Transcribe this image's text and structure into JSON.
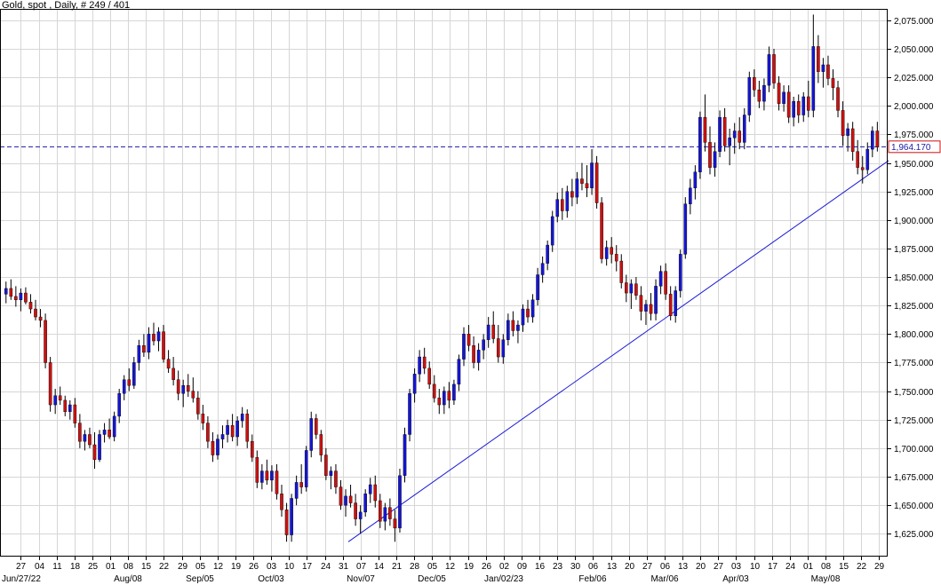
{
  "chart_data": {
    "type": "candlestick",
    "title": "Gold, spot , Daily, # 249 / 401",
    "ylim": [
      1605,
      2085
    ],
    "y_ticks": [
      1625,
      1650,
      1675,
      1700,
      1725,
      1750,
      1775,
      1800,
      1825,
      1850,
      1875,
      1900,
      1925,
      1950,
      1975,
      2000,
      2025,
      2050,
      2075
    ],
    "y_tick_labels": [
      "1,625.000",
      "1,650.000",
      "1,675.000",
      "1,700.000",
      "1,725.000",
      "1,750.000",
      "1,775.000",
      "1,800.000",
      "1,825.000",
      "1,850.000",
      "1,875.000",
      "1,900.000",
      "1,925.000",
      "1,950.000",
      "1,975.000",
      "2,000.000",
      "2,025.000",
      "2,050.000",
      "2,075.000"
    ],
    "x_day_labels": [
      "27",
      "04",
      "11",
      "18",
      "25",
      "01",
      "08",
      "15",
      "22",
      "29",
      "05",
      "12",
      "19",
      "26",
      "03",
      "10",
      "17",
      "24",
      "31",
      "07",
      "14",
      "21",
      "28",
      "05",
      "12",
      "19",
      "26",
      "02",
      "09",
      "16",
      "23",
      "30",
      "06",
      "13",
      "20",
      "27",
      "06",
      "13",
      "20",
      "27",
      "03",
      "10",
      "17",
      "24",
      "01",
      "08",
      "15",
      "22",
      "29"
    ],
    "x_month_labels": [
      {
        "label": "Jun/27/22",
        "day_index": 0
      },
      {
        "label": "Aug/08",
        "day_index": 6
      },
      {
        "label": "Sep/05",
        "day_index": 10
      },
      {
        "label": "Oct/03",
        "day_index": 14
      },
      {
        "label": "Nov/07",
        "day_index": 19
      },
      {
        "label": "Dec/05",
        "day_index": 23
      },
      {
        "label": "Jan/02/23",
        "day_index": 27
      },
      {
        "label": "Feb/06",
        "day_index": 32
      },
      {
        "label": "Mar/06",
        "day_index": 36
      },
      {
        "label": "Apr/03",
        "day_index": 40
      },
      {
        "label": "May/08",
        "day_index": 45
      }
    ],
    "current_price": 1964.17,
    "current_price_label": "1,964.170",
    "trendline": {
      "start": [
        1,
        1618
      ],
      "end": [
        232,
        1952
      ]
    },
    "grid": true,
    "candles": [
      {
        "o": 1835,
        "h": 1846,
        "l": 1827,
        "c": 1840
      },
      {
        "o": 1840,
        "h": 1848,
        "l": 1830,
        "c": 1833
      },
      {
        "o": 1833,
        "h": 1842,
        "l": 1824,
        "c": 1830
      },
      {
        "o": 1830,
        "h": 1840,
        "l": 1820,
        "c": 1836
      },
      {
        "o": 1836,
        "h": 1841,
        "l": 1826,
        "c": 1828
      },
      {
        "o": 1828,
        "h": 1835,
        "l": 1818,
        "c": 1822
      },
      {
        "o": 1822,
        "h": 1830,
        "l": 1812,
        "c": 1815
      },
      {
        "o": 1815,
        "h": 1822,
        "l": 1806,
        "c": 1812
      },
      {
        "o": 1812,
        "h": 1818,
        "l": 1770,
        "c": 1775
      },
      {
        "o": 1775,
        "h": 1780,
        "l": 1732,
        "c": 1738
      },
      {
        "o": 1738,
        "h": 1752,
        "l": 1730,
        "c": 1746
      },
      {
        "o": 1746,
        "h": 1754,
        "l": 1738,
        "c": 1742
      },
      {
        "o": 1742,
        "h": 1746,
        "l": 1728,
        "c": 1732
      },
      {
        "o": 1732,
        "h": 1742,
        "l": 1725,
        "c": 1738
      },
      {
        "o": 1738,
        "h": 1744,
        "l": 1718,
        "c": 1722
      },
      {
        "o": 1722,
        "h": 1730,
        "l": 1700,
        "c": 1706
      },
      {
        "o": 1706,
        "h": 1716,
        "l": 1698,
        "c": 1712
      },
      {
        "o": 1712,
        "h": 1718,
        "l": 1700,
        "c": 1703
      },
      {
        "o": 1703,
        "h": 1714,
        "l": 1682,
        "c": 1690
      },
      {
        "o": 1690,
        "h": 1716,
        "l": 1688,
        "c": 1712
      },
      {
        "o": 1712,
        "h": 1722,
        "l": 1705,
        "c": 1716
      },
      {
        "o": 1716,
        "h": 1726,
        "l": 1708,
        "c": 1710
      },
      {
        "o": 1710,
        "h": 1732,
        "l": 1706,
        "c": 1728
      },
      {
        "o": 1728,
        "h": 1752,
        "l": 1722,
        "c": 1748
      },
      {
        "o": 1748,
        "h": 1764,
        "l": 1742,
        "c": 1760
      },
      {
        "o": 1760,
        "h": 1770,
        "l": 1750,
        "c": 1755
      },
      {
        "o": 1755,
        "h": 1780,
        "l": 1752,
        "c": 1775
      },
      {
        "o": 1775,
        "h": 1795,
        "l": 1768,
        "c": 1790
      },
      {
        "o": 1790,
        "h": 1800,
        "l": 1780,
        "c": 1784
      },
      {
        "o": 1784,
        "h": 1806,
        "l": 1778,
        "c": 1800
      },
      {
        "o": 1800,
        "h": 1810,
        "l": 1790,
        "c": 1794
      },
      {
        "o": 1794,
        "h": 1806,
        "l": 1785,
        "c": 1802
      },
      {
        "o": 1802,
        "h": 1808,
        "l": 1775,
        "c": 1778
      },
      {
        "o": 1778,
        "h": 1786,
        "l": 1766,
        "c": 1770
      },
      {
        "o": 1770,
        "h": 1780,
        "l": 1755,
        "c": 1760
      },
      {
        "o": 1760,
        "h": 1768,
        "l": 1742,
        "c": 1748
      },
      {
        "o": 1748,
        "h": 1760,
        "l": 1736,
        "c": 1755
      },
      {
        "o": 1755,
        "h": 1765,
        "l": 1745,
        "c": 1750
      },
      {
        "o": 1750,
        "h": 1762,
        "l": 1740,
        "c": 1744
      },
      {
        "o": 1744,
        "h": 1750,
        "l": 1725,
        "c": 1730
      },
      {
        "o": 1730,
        "h": 1738,
        "l": 1716,
        "c": 1722
      },
      {
        "o": 1722,
        "h": 1728,
        "l": 1700,
        "c": 1706
      },
      {
        "o": 1706,
        "h": 1714,
        "l": 1688,
        "c": 1694
      },
      {
        "o": 1694,
        "h": 1712,
        "l": 1690,
        "c": 1708
      },
      {
        "o": 1708,
        "h": 1720,
        "l": 1700,
        "c": 1712
      },
      {
        "o": 1712,
        "h": 1725,
        "l": 1705,
        "c": 1720
      },
      {
        "o": 1720,
        "h": 1730,
        "l": 1706,
        "c": 1710
      },
      {
        "o": 1710,
        "h": 1728,
        "l": 1702,
        "c": 1724
      },
      {
        "o": 1724,
        "h": 1736,
        "l": 1718,
        "c": 1730
      },
      {
        "o": 1730,
        "h": 1734,
        "l": 1700,
        "c": 1706
      },
      {
        "o": 1706,
        "h": 1712,
        "l": 1688,
        "c": 1692
      },
      {
        "o": 1692,
        "h": 1698,
        "l": 1665,
        "c": 1670
      },
      {
        "o": 1670,
        "h": 1686,
        "l": 1664,
        "c": 1680
      },
      {
        "o": 1680,
        "h": 1690,
        "l": 1668,
        "c": 1672
      },
      {
        "o": 1672,
        "h": 1685,
        "l": 1662,
        "c": 1680
      },
      {
        "o": 1680,
        "h": 1686,
        "l": 1655,
        "c": 1660
      },
      {
        "o": 1660,
        "h": 1668,
        "l": 1640,
        "c": 1646
      },
      {
        "o": 1646,
        "h": 1652,
        "l": 1618,
        "c": 1624
      },
      {
        "o": 1624,
        "h": 1660,
        "l": 1618,
        "c": 1656
      },
      {
        "o": 1656,
        "h": 1676,
        "l": 1650,
        "c": 1670
      },
      {
        "o": 1670,
        "h": 1686,
        "l": 1660,
        "c": 1666
      },
      {
        "o": 1666,
        "h": 1702,
        "l": 1662,
        "c": 1698
      },
      {
        "o": 1698,
        "h": 1732,
        "l": 1692,
        "c": 1726
      },
      {
        "o": 1726,
        "h": 1730,
        "l": 1708,
        "c": 1712
      },
      {
        "o": 1712,
        "h": 1716,
        "l": 1688,
        "c": 1694
      },
      {
        "o": 1694,
        "h": 1700,
        "l": 1672,
        "c": 1676
      },
      {
        "o": 1676,
        "h": 1684,
        "l": 1664,
        "c": 1680
      },
      {
        "o": 1680,
        "h": 1686,
        "l": 1660,
        "c": 1666
      },
      {
        "o": 1666,
        "h": 1672,
        "l": 1646,
        "c": 1650
      },
      {
        "o": 1650,
        "h": 1664,
        "l": 1640,
        "c": 1658
      },
      {
        "o": 1658,
        "h": 1668,
        "l": 1648,
        "c": 1652
      },
      {
        "o": 1652,
        "h": 1660,
        "l": 1632,
        "c": 1638
      },
      {
        "o": 1638,
        "h": 1650,
        "l": 1625,
        "c": 1644
      },
      {
        "o": 1644,
        "h": 1664,
        "l": 1640,
        "c": 1660
      },
      {
        "o": 1660,
        "h": 1674,
        "l": 1652,
        "c": 1668
      },
      {
        "o": 1668,
        "h": 1676,
        "l": 1648,
        "c": 1654
      },
      {
        "o": 1654,
        "h": 1660,
        "l": 1630,
        "c": 1636
      },
      {
        "o": 1636,
        "h": 1652,
        "l": 1628,
        "c": 1648
      },
      {
        "o": 1648,
        "h": 1656,
        "l": 1632,
        "c": 1638
      },
      {
        "o": 1638,
        "h": 1646,
        "l": 1618,
        "c": 1630
      },
      {
        "o": 1630,
        "h": 1682,
        "l": 1626,
        "c": 1676
      },
      {
        "o": 1676,
        "h": 1718,
        "l": 1670,
        "c": 1712
      },
      {
        "o": 1712,
        "h": 1752,
        "l": 1706,
        "c": 1748
      },
      {
        "o": 1748,
        "h": 1770,
        "l": 1740,
        "c": 1765
      },
      {
        "o": 1765,
        "h": 1786,
        "l": 1758,
        "c": 1780
      },
      {
        "o": 1780,
        "h": 1788,
        "l": 1765,
        "c": 1770
      },
      {
        "o": 1770,
        "h": 1776,
        "l": 1752,
        "c": 1756
      },
      {
        "o": 1756,
        "h": 1764,
        "l": 1740,
        "c": 1744
      },
      {
        "o": 1744,
        "h": 1752,
        "l": 1730,
        "c": 1738
      },
      {
        "o": 1738,
        "h": 1754,
        "l": 1730,
        "c": 1750
      },
      {
        "o": 1750,
        "h": 1758,
        "l": 1735,
        "c": 1742
      },
      {
        "o": 1742,
        "h": 1760,
        "l": 1738,
        "c": 1756
      },
      {
        "o": 1756,
        "h": 1782,
        "l": 1750,
        "c": 1778
      },
      {
        "o": 1778,
        "h": 1806,
        "l": 1772,
        "c": 1800
      },
      {
        "o": 1800,
        "h": 1808,
        "l": 1785,
        "c": 1790
      },
      {
        "o": 1790,
        "h": 1798,
        "l": 1770,
        "c": 1775
      },
      {
        "o": 1775,
        "h": 1792,
        "l": 1768,
        "c": 1786
      },
      {
        "o": 1786,
        "h": 1800,
        "l": 1778,
        "c": 1795
      },
      {
        "o": 1795,
        "h": 1815,
        "l": 1788,
        "c": 1808
      },
      {
        "o": 1808,
        "h": 1820,
        "l": 1792,
        "c": 1796
      },
      {
        "o": 1796,
        "h": 1808,
        "l": 1775,
        "c": 1780
      },
      {
        "o": 1780,
        "h": 1800,
        "l": 1774,
        "c": 1795
      },
      {
        "o": 1795,
        "h": 1818,
        "l": 1790,
        "c": 1812
      },
      {
        "o": 1812,
        "h": 1820,
        "l": 1798,
        "c": 1803
      },
      {
        "o": 1803,
        "h": 1812,
        "l": 1792,
        "c": 1808
      },
      {
        "o": 1808,
        "h": 1826,
        "l": 1802,
        "c": 1822
      },
      {
        "o": 1822,
        "h": 1830,
        "l": 1810,
        "c": 1815
      },
      {
        "o": 1815,
        "h": 1835,
        "l": 1810,
        "c": 1830
      },
      {
        "o": 1830,
        "h": 1858,
        "l": 1825,
        "c": 1852
      },
      {
        "o": 1852,
        "h": 1868,
        "l": 1845,
        "c": 1862
      },
      {
        "o": 1862,
        "h": 1882,
        "l": 1856,
        "c": 1878
      },
      {
        "o": 1878,
        "h": 1908,
        "l": 1872,
        "c": 1903
      },
      {
        "o": 1903,
        "h": 1924,
        "l": 1898,
        "c": 1918
      },
      {
        "o": 1918,
        "h": 1928,
        "l": 1900,
        "c": 1908
      },
      {
        "o": 1908,
        "h": 1930,
        "l": 1902,
        "c": 1925
      },
      {
        "o": 1925,
        "h": 1936,
        "l": 1912,
        "c": 1920
      },
      {
        "o": 1920,
        "h": 1942,
        "l": 1914,
        "c": 1936
      },
      {
        "o": 1936,
        "h": 1950,
        "l": 1926,
        "c": 1932
      },
      {
        "o": 1932,
        "h": 1948,
        "l": 1920,
        "c": 1928
      },
      {
        "o": 1928,
        "h": 1962,
        "l": 1922,
        "c": 1950
      },
      {
        "o": 1950,
        "h": 1956,
        "l": 1910,
        "c": 1915
      },
      {
        "o": 1915,
        "h": 1920,
        "l": 1862,
        "c": 1866
      },
      {
        "o": 1866,
        "h": 1882,
        "l": 1860,
        "c": 1876
      },
      {
        "o": 1876,
        "h": 1885,
        "l": 1862,
        "c": 1870
      },
      {
        "o": 1870,
        "h": 1878,
        "l": 1855,
        "c": 1864
      },
      {
        "o": 1864,
        "h": 1870,
        "l": 1840,
        "c": 1845
      },
      {
        "o": 1845,
        "h": 1852,
        "l": 1828,
        "c": 1836
      },
      {
        "o": 1836,
        "h": 1848,
        "l": 1822,
        "c": 1844
      },
      {
        "o": 1844,
        "h": 1850,
        "l": 1830,
        "c": 1834
      },
      {
        "o": 1834,
        "h": 1842,
        "l": 1812,
        "c": 1820
      },
      {
        "o": 1820,
        "h": 1830,
        "l": 1808,
        "c": 1826
      },
      {
        "o": 1826,
        "h": 1836,
        "l": 1812,
        "c": 1818
      },
      {
        "o": 1818,
        "h": 1848,
        "l": 1812,
        "c": 1842
      },
      {
        "o": 1842,
        "h": 1860,
        "l": 1835,
        "c": 1855
      },
      {
        "o": 1855,
        "h": 1862,
        "l": 1830,
        "c": 1835
      },
      {
        "o": 1835,
        "h": 1842,
        "l": 1812,
        "c": 1816
      },
      {
        "o": 1816,
        "h": 1842,
        "l": 1810,
        "c": 1838
      },
      {
        "o": 1838,
        "h": 1874,
        "l": 1832,
        "c": 1870
      },
      {
        "o": 1870,
        "h": 1920,
        "l": 1866,
        "c": 1914
      },
      {
        "o": 1914,
        "h": 1936,
        "l": 1905,
        "c": 1928
      },
      {
        "o": 1928,
        "h": 1948,
        "l": 1918,
        "c": 1942
      },
      {
        "o": 1942,
        "h": 1995,
        "l": 1936,
        "c": 1990
      },
      {
        "o": 1990,
        "h": 2010,
        "l": 1960,
        "c": 1968
      },
      {
        "o": 1968,
        "h": 1982,
        "l": 1940,
        "c": 1946
      },
      {
        "o": 1946,
        "h": 1968,
        "l": 1938,
        "c": 1960
      },
      {
        "o": 1960,
        "h": 1996,
        "l": 1955,
        "c": 1990
      },
      {
        "o": 1990,
        "h": 1998,
        "l": 1960,
        "c": 1965
      },
      {
        "o": 1965,
        "h": 1980,
        "l": 1948,
        "c": 1972
      },
      {
        "o": 1972,
        "h": 1985,
        "l": 1958,
        "c": 1978
      },
      {
        "o": 1978,
        "h": 1990,
        "l": 1962,
        "c": 1968
      },
      {
        "o": 1968,
        "h": 1998,
        "l": 1962,
        "c": 1992
      },
      {
        "o": 1992,
        "h": 2030,
        "l": 1986,
        "c": 2025
      },
      {
        "o": 2025,
        "h": 2032,
        "l": 2008,
        "c": 2014
      },
      {
        "o": 2014,
        "h": 2022,
        "l": 1998,
        "c": 2004
      },
      {
        "o": 2004,
        "h": 2024,
        "l": 1996,
        "c": 2018
      },
      {
        "o": 2018,
        "h": 2052,
        "l": 2012,
        "c": 2045
      },
      {
        "o": 2045,
        "h": 2050,
        "l": 2015,
        "c": 2020
      },
      {
        "o": 2020,
        "h": 2026,
        "l": 1996,
        "c": 2002
      },
      {
        "o": 2002,
        "h": 2018,
        "l": 1995,
        "c": 2012
      },
      {
        "o": 2012,
        "h": 2018,
        "l": 1985,
        "c": 1990
      },
      {
        "o": 1990,
        "h": 2008,
        "l": 1982,
        "c": 2004
      },
      {
        "o": 2004,
        "h": 2010,
        "l": 1985,
        "c": 1992
      },
      {
        "o": 1992,
        "h": 2012,
        "l": 1986,
        "c": 2008
      },
      {
        "o": 2008,
        "h": 2022,
        "l": 1990,
        "c": 1996
      },
      {
        "o": 1996,
        "h": 2080,
        "l": 1990,
        "c": 2052
      },
      {
        "o": 2052,
        "h": 2062,
        "l": 2020,
        "c": 2030
      },
      {
        "o": 2030,
        "h": 2042,
        "l": 2016,
        "c": 2036
      },
      {
        "o": 2036,
        "h": 2044,
        "l": 2018,
        "c": 2024
      },
      {
        "o": 2024,
        "h": 2032,
        "l": 2005,
        "c": 2016
      },
      {
        "o": 2016,
        "h": 2022,
        "l": 1990,
        "c": 1996
      },
      {
        "o": 1996,
        "h": 2004,
        "l": 1965,
        "c": 1974
      },
      {
        "o": 1974,
        "h": 1985,
        "l": 1960,
        "c": 1980
      },
      {
        "o": 1980,
        "h": 1986,
        "l": 1952,
        "c": 1960
      },
      {
        "o": 1960,
        "h": 1970,
        "l": 1940,
        "c": 1946
      },
      {
        "o": 1946,
        "h": 1956,
        "l": 1932,
        "c": 1944
      },
      {
        "o": 1944,
        "h": 1968,
        "l": 1940,
        "c": 1962
      },
      {
        "o": 1962,
        "h": 1982,
        "l": 1955,
        "c": 1978
      },
      {
        "o": 1978,
        "h": 1986,
        "l": 1960,
        "c": 1964
      }
    ]
  }
}
